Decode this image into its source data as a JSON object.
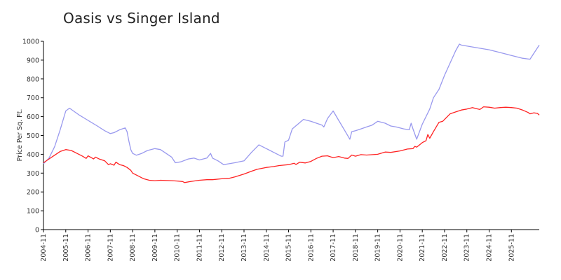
{
  "chart_data": {
    "type": "line",
    "title": "Oasis vs Singer Island",
    "xlabel": "",
    "ylabel": "Price Per Sq. Ft.",
    "ylim": [
      0,
      1000
    ],
    "yticks": [
      0,
      100,
      200,
      300,
      400,
      500,
      600,
      700,
      800,
      900,
      1000
    ],
    "xticks": [
      "2004-11",
      "2005-11",
      "2006-11",
      "2007-11",
      "2008-11",
      "2009-11",
      "2010-11",
      "2011-11",
      "2012-11",
      "2013-11",
      "2014-11",
      "2015-11",
      "2016-11",
      "2017-11",
      "2018-11",
      "2019-11",
      "2020-11",
      "2021-11",
      "2022-11",
      "2023-11",
      "2024-11",
      "2025-11"
    ],
    "grid": false,
    "legend": "none",
    "series": [
      {
        "color": "#9999ee",
        "points": [
          [
            "2004-11",
            350
          ],
          [
            "2005-02",
            380
          ],
          [
            "2005-05",
            440
          ],
          [
            "2005-08",
            530
          ],
          [
            "2005-11",
            630
          ],
          [
            "2006-01",
            645
          ],
          [
            "2006-06",
            610
          ],
          [
            "2006-11",
            580
          ],
          [
            "2007-04",
            550
          ],
          [
            "2007-08",
            525
          ],
          [
            "2007-11",
            510
          ],
          [
            "2008-01",
            515
          ],
          [
            "2008-04",
            530
          ],
          [
            "2008-07",
            540
          ],
          [
            "2008-08",
            520
          ],
          [
            "2008-09",
            470
          ],
          [
            "2008-10",
            425
          ],
          [
            "2008-11",
            405
          ],
          [
            "2009-01",
            395
          ],
          [
            "2009-04",
            405
          ],
          [
            "2009-07",
            420
          ],
          [
            "2009-11",
            430
          ],
          [
            "2010-02",
            425
          ],
          [
            "2010-05",
            405
          ],
          [
            "2010-08",
            385
          ],
          [
            "2010-10",
            355
          ],
          [
            "2011-01",
            360
          ],
          [
            "2011-05",
            375
          ],
          [
            "2011-08",
            380
          ],
          [
            "2011-11",
            370
          ],
          [
            "2012-03",
            380
          ],
          [
            "2012-05",
            405
          ],
          [
            "2012-06",
            380
          ],
          [
            "2012-09",
            365
          ],
          [
            "2012-12",
            345
          ],
          [
            "2013-03",
            350
          ],
          [
            "2013-06",
            355
          ],
          [
            "2013-11",
            365
          ],
          [
            "2014-03",
            410
          ],
          [
            "2014-07",
            450
          ],
          [
            "2014-11",
            430
          ],
          [
            "2015-03",
            410
          ],
          [
            "2015-07",
            390
          ],
          [
            "2015-08",
            390
          ],
          [
            "2015-09",
            465
          ],
          [
            "2015-11",
            475
          ],
          [
            "2016-01",
            535
          ],
          [
            "2016-04",
            560
          ],
          [
            "2016-07",
            585
          ],
          [
            "2016-11",
            575
          ],
          [
            "2017-02",
            565
          ],
          [
            "2017-05",
            555
          ],
          [
            "2017-06",
            545
          ],
          [
            "2017-08",
            590
          ],
          [
            "2017-11",
            630
          ],
          [
            "2018-02",
            580
          ],
          [
            "2018-05",
            530
          ],
          [
            "2018-08",
            480
          ],
          [
            "2018-09",
            520
          ],
          [
            "2018-11",
            525
          ],
          [
            "2019-02",
            535
          ],
          [
            "2019-05",
            545
          ],
          [
            "2019-08",
            555
          ],
          [
            "2019-11",
            575
          ],
          [
            "2020-03",
            565
          ],
          [
            "2020-06",
            550
          ],
          [
            "2020-09",
            545
          ],
          [
            "2021-01",
            535
          ],
          [
            "2021-04",
            530
          ],
          [
            "2021-05",
            565
          ],
          [
            "2021-06",
            535
          ],
          [
            "2021-08",
            480
          ],
          [
            "2021-11",
            560
          ],
          [
            "2022-03",
            640
          ],
          [
            "2022-05",
            700
          ],
          [
            "2022-08",
            745
          ],
          [
            "2022-11",
            820
          ],
          [
            "2023-05",
            950
          ],
          [
            "2023-07",
            985
          ],
          [
            "2023-08",
            980
          ],
          [
            "2024-02",
            970
          ],
          [
            "2024-11",
            955
          ],
          [
            "2025-05",
            940
          ],
          [
            "2025-11",
            925
          ],
          [
            "2026-05",
            910
          ],
          [
            "2026-09",
            905
          ],
          [
            "2026-11",
            935
          ],
          [
            "2027-02",
            980
          ]
        ]
      },
      {
        "color": "#ff2222",
        "points": [
          [
            "2004-11",
            355
          ],
          [
            "2005-02",
            375
          ],
          [
            "2005-05",
            395
          ],
          [
            "2005-08",
            415
          ],
          [
            "2005-11",
            425
          ],
          [
            "2006-02",
            420
          ],
          [
            "2006-05",
            405
          ],
          [
            "2006-08",
            390
          ],
          [
            "2006-10",
            378
          ],
          [
            "2006-11",
            392
          ],
          [
            "2007-02",
            375
          ],
          [
            "2007-03",
            385
          ],
          [
            "2007-05",
            375
          ],
          [
            "2007-08",
            365
          ],
          [
            "2007-10",
            345
          ],
          [
            "2007-11",
            350
          ],
          [
            "2008-01",
            342
          ],
          [
            "2008-02",
            358
          ],
          [
            "2008-04",
            345
          ],
          [
            "2008-06",
            340
          ],
          [
            "2008-08",
            330
          ],
          [
            "2008-10",
            315
          ],
          [
            "2008-11",
            300
          ],
          [
            "2009-02",
            285
          ],
          [
            "2009-05",
            270
          ],
          [
            "2009-08",
            262
          ],
          [
            "2009-11",
            260
          ],
          [
            "2010-02",
            262
          ],
          [
            "2010-08",
            260
          ],
          [
            "2010-11",
            258
          ],
          [
            "2011-02",
            255
          ],
          [
            "2011-03",
            250
          ],
          [
            "2011-06",
            255
          ],
          [
            "2011-11",
            262
          ],
          [
            "2012-03",
            265
          ],
          [
            "2012-06",
            265
          ],
          [
            "2012-11",
            270
          ],
          [
            "2013-03",
            272
          ],
          [
            "2013-06",
            280
          ],
          [
            "2013-11",
            295
          ],
          [
            "2014-03",
            310
          ],
          [
            "2014-06",
            320
          ],
          [
            "2014-11",
            330
          ],
          [
            "2015-03",
            335
          ],
          [
            "2015-06",
            340
          ],
          [
            "2015-11",
            345
          ],
          [
            "2016-02",
            352
          ],
          [
            "2016-03",
            346
          ],
          [
            "2016-05",
            358
          ],
          [
            "2016-08",
            354
          ],
          [
            "2016-11",
            362
          ],
          [
            "2017-02",
            378
          ],
          [
            "2017-05",
            390
          ],
          [
            "2017-08",
            392
          ],
          [
            "2017-11",
            382
          ],
          [
            "2018-02",
            388
          ],
          [
            "2018-05",
            380
          ],
          [
            "2018-07",
            378
          ],
          [
            "2018-09",
            396
          ],
          [
            "2018-11",
            390
          ],
          [
            "2019-02",
            398
          ],
          [
            "2019-05",
            396
          ],
          [
            "2019-11",
            400
          ],
          [
            "2020-03",
            412
          ],
          [
            "2020-06",
            410
          ],
          [
            "2020-11",
            418
          ],
          [
            "2021-03",
            428
          ],
          [
            "2021-06",
            430
          ],
          [
            "2021-07",
            442
          ],
          [
            "2021-08",
            438
          ],
          [
            "2021-11",
            462
          ],
          [
            "2022-01",
            472
          ],
          [
            "2022-02",
            505
          ],
          [
            "2022-03",
            485
          ],
          [
            "2022-05",
            520
          ],
          [
            "2022-08",
            570
          ],
          [
            "2022-10",
            575
          ],
          [
            "2022-11",
            585
          ],
          [
            "2023-02",
            615
          ],
          [
            "2023-05",
            625
          ],
          [
            "2023-08",
            635
          ],
          [
            "2023-11",
            640
          ],
          [
            "2024-02",
            648
          ],
          [
            "2024-05",
            640
          ],
          [
            "2024-06",
            638
          ],
          [
            "2024-08",
            652
          ],
          [
            "2024-11",
            650
          ],
          [
            "2025-02",
            645
          ],
          [
            "2025-05",
            648
          ],
          [
            "2025-08",
            650
          ],
          [
            "2025-11",
            648
          ],
          [
            "2026-02",
            645
          ],
          [
            "2026-05",
            635
          ],
          [
            "2026-08",
            622
          ],
          [
            "2026-09",
            615
          ],
          [
            "2026-11",
            620
          ],
          [
            "2027-01",
            617
          ],
          [
            "2027-02",
            608
          ]
        ]
      }
    ]
  }
}
